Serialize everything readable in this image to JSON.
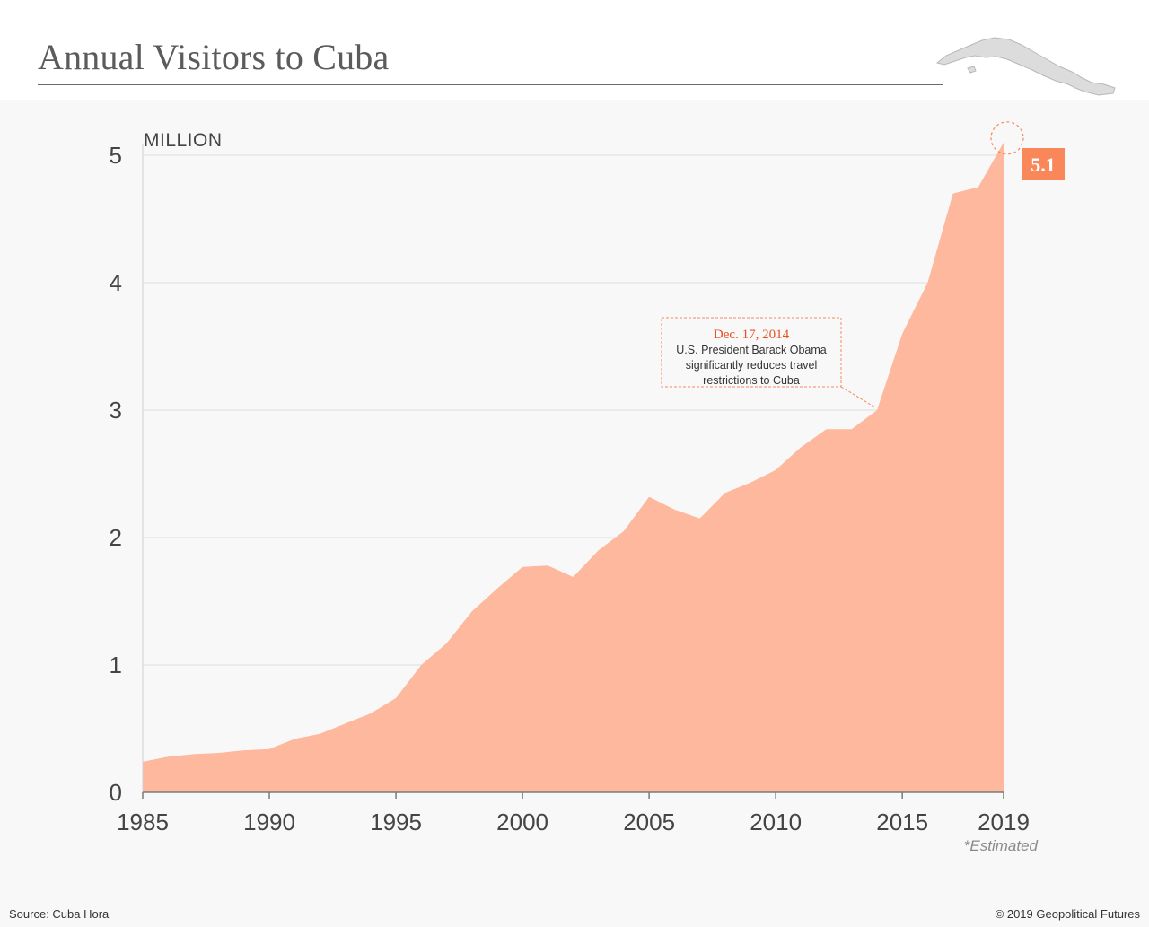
{
  "title": "Annual Visitors to Cuba",
  "map_icon": "cuba-map-icon",
  "source": "Source: Cuba Hora",
  "copyright": "© 2019 Geopolitical Futures",
  "colors": {
    "area": "#fdb89d",
    "accent": "#f9875a",
    "annotation_date": "#e8501e",
    "map": "#dcdcdc"
  },
  "chart_data": {
    "type": "area",
    "title": "Annual Visitors to Cuba",
    "ylabel": "MILLION",
    "xlabel": "",
    "xlim": [
      1985,
      2019
    ],
    "ylim": [
      0,
      5
    ],
    "grid": true,
    "x_ticks": [
      "1985",
      "1990",
      "1995",
      "2000",
      "2005",
      "2010",
      "2015",
      "2019"
    ],
    "y_ticks": [
      "0",
      "1",
      "2",
      "3",
      "4",
      "5"
    ],
    "x": [
      1985,
      1986,
      1987,
      1988,
      1989,
      1990,
      1991,
      1992,
      1993,
      1994,
      1995,
      1996,
      1997,
      1998,
      1999,
      2000,
      2001,
      2002,
      2003,
      2004,
      2005,
      2006,
      2007,
      2008,
      2009,
      2010,
      2011,
      2012,
      2013,
      2014,
      2015,
      2016,
      2017,
      2018,
      2019
    ],
    "values": [
      0.24,
      0.28,
      0.3,
      0.31,
      0.33,
      0.34,
      0.42,
      0.46,
      0.54,
      0.62,
      0.74,
      1.0,
      1.17,
      1.42,
      1.6,
      1.77,
      1.78,
      1.69,
      1.9,
      2.05,
      2.32,
      2.22,
      2.15,
      2.35,
      2.43,
      2.53,
      2.71,
      2.85,
      2.85,
      3.0,
      3.6,
      4.0,
      4.7,
      4.75,
      5.1
    ],
    "highlight_label": "5.1",
    "estimated_note": "*Estimated",
    "annotation": {
      "x": 2014,
      "y": 3.0,
      "date": "Dec. 17, 2014",
      "text_lines": [
        "U.S. President Barack Obama",
        "significantly reduces travel",
        "restrictions to Cuba"
      ]
    }
  }
}
